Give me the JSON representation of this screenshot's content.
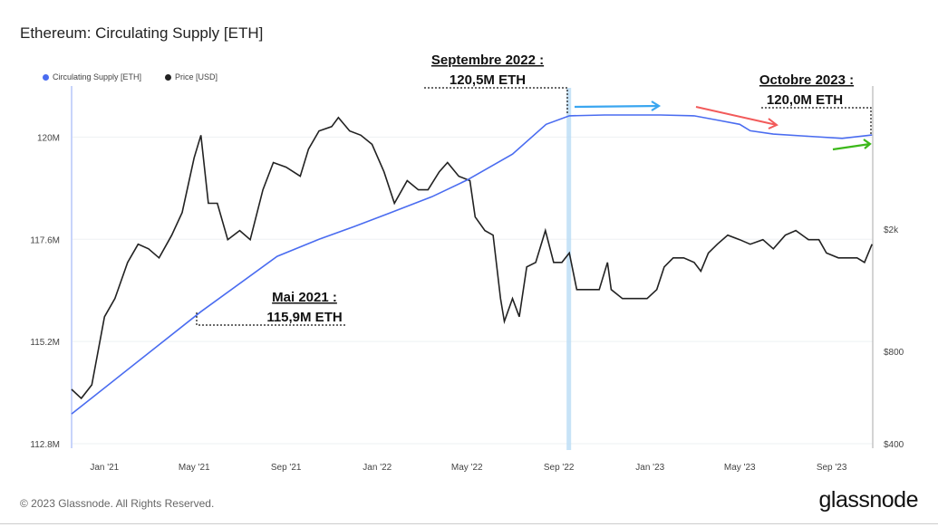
{
  "chart_data": {
    "type": "line",
    "title": "Ethereum: Circulating Supply [ETH]",
    "legend_placement": "top-left",
    "grid": true,
    "xlim": [
      "2020-11-18",
      "2023-10-26"
    ],
    "x_ticks": [
      {
        "date": "2021-01-01",
        "label": "Jan '21"
      },
      {
        "date": "2021-05-01",
        "label": "May '21"
      },
      {
        "date": "2021-09-01",
        "label": "Sep '21"
      },
      {
        "date": "2022-01-01",
        "label": "Jan '22"
      },
      {
        "date": "2022-05-01",
        "label": "May '22"
      },
      {
        "date": "2022-09-01",
        "label": "Sep '22"
      },
      {
        "date": "2023-01-01",
        "label": "Jan '23"
      },
      {
        "date": "2023-05-01",
        "label": "May '23"
      },
      {
        "date": "2023-09-01",
        "label": "Sep '23"
      }
    ],
    "y_left": {
      "scale": "linear",
      "ylim": [
        112.8,
        121.2
      ],
      "unit": "M ETH",
      "ticks": [
        {
          "v": 112.8,
          "label": "112.8M"
        },
        {
          "v": 115.2,
          "label": "115.2M"
        },
        {
          "v": 117.6,
          "label": "117.6M"
        },
        {
          "v": 120,
          "label": "120M"
        }
      ]
    },
    "y_right": {
      "scale": "log",
      "ylim": [
        400,
        5840
      ],
      "unit": "USD",
      "ticks": [
        {
          "v": 400,
          "label": "$400"
        },
        {
          "v": 800,
          "label": "$800"
        },
        {
          "v": 2000,
          "label": "$2k"
        }
      ]
    },
    "series": [
      {
        "name": "Circulating Supply [ETH]",
        "axis": "left",
        "color": "#4a6cf0",
        "points": [
          [
            "2020-11-18",
            113.5
          ],
          [
            "2021-05-10",
            115.9
          ],
          [
            "2021-08-20",
            117.2
          ],
          [
            "2021-10-15",
            117.6
          ],
          [
            "2021-12-01",
            117.9
          ],
          [
            "2022-01-15",
            118.2
          ],
          [
            "2022-03-15",
            118.6
          ],
          [
            "2022-05-01",
            118.99
          ],
          [
            "2022-07-01",
            119.6
          ],
          [
            "2022-08-15",
            120.3
          ],
          [
            "2022-09-15",
            120.5
          ],
          [
            "2022-11-01",
            120.52
          ],
          [
            "2023-01-15",
            120.52
          ],
          [
            "2023-03-01",
            120.5
          ],
          [
            "2023-04-01",
            120.4
          ],
          [
            "2023-05-01",
            120.3
          ],
          [
            "2023-05-15",
            120.15
          ],
          [
            "2023-06-15",
            120.07
          ],
          [
            "2023-08-01",
            120.02
          ],
          [
            "2023-09-15",
            119.97
          ],
          [
            "2023-10-25",
            120.05
          ]
        ]
      },
      {
        "name": "Price [USD]",
        "axis": "right",
        "color": "#222222",
        "points": [
          [
            "2020-11-18",
            601
          ],
          [
            "2020-12-01",
            562
          ],
          [
            "2020-12-15",
            622
          ],
          [
            "2021-01-01",
            1036
          ],
          [
            "2021-01-15",
            1187
          ],
          [
            "2021-02-01",
            1557
          ],
          [
            "2021-02-15",
            1784
          ],
          [
            "2021-03-01",
            1723
          ],
          [
            "2021-03-15",
            1610
          ],
          [
            "2021-04-01",
            1910
          ],
          [
            "2021-04-15",
            2263
          ],
          [
            "2021-05-01",
            3410
          ],
          [
            "2021-05-10",
            4040
          ],
          [
            "2021-05-20",
            2425
          ],
          [
            "2021-06-01",
            2425
          ],
          [
            "2021-06-15",
            1846
          ],
          [
            "2021-07-01",
            1977
          ],
          [
            "2021-07-15",
            1846
          ],
          [
            "2021-08-01",
            2682
          ],
          [
            "2021-08-15",
            3290
          ],
          [
            "2021-09-01",
            3180
          ],
          [
            "2021-09-20",
            2970
          ],
          [
            "2021-10-01",
            3640
          ],
          [
            "2021-10-15",
            4170
          ],
          [
            "2021-11-01",
            4310
          ],
          [
            "2021-11-10",
            4610
          ],
          [
            "2021-11-25",
            4170
          ],
          [
            "2021-12-10",
            4040
          ],
          [
            "2021-12-25",
            3772
          ],
          [
            "2022-01-10",
            3070
          ],
          [
            "2022-01-24",
            2425
          ],
          [
            "2022-02-10",
            2873
          ],
          [
            "2022-02-25",
            2682
          ],
          [
            "2022-03-10",
            2682
          ],
          [
            "2022-03-25",
            3070
          ],
          [
            "2022-04-05",
            3290
          ],
          [
            "2022-04-20",
            2970
          ],
          [
            "2022-05-05",
            2873
          ],
          [
            "2022-05-12",
            2189
          ],
          [
            "2022-05-25",
            1977
          ],
          [
            "2022-06-05",
            1910
          ],
          [
            "2022-06-15",
            1187
          ],
          [
            "2022-06-20",
            1000
          ],
          [
            "2022-07-01",
            1187
          ],
          [
            "2022-07-10",
            1036
          ],
          [
            "2022-07-20",
            1505
          ],
          [
            "2022-08-01",
            1557
          ],
          [
            "2022-08-14",
            1977
          ],
          [
            "2022-08-25",
            1557
          ],
          [
            "2022-09-05",
            1557
          ],
          [
            "2022-09-15",
            1670
          ],
          [
            "2022-09-25",
            1270
          ],
          [
            "2022-10-10",
            1270
          ],
          [
            "2022-10-25",
            1270
          ],
          [
            "2022-11-05",
            1557
          ],
          [
            "2022-11-10",
            1270
          ],
          [
            "2022-11-25",
            1187
          ],
          [
            "2022-12-10",
            1187
          ],
          [
            "2022-12-28",
            1187
          ],
          [
            "2023-01-10",
            1270
          ],
          [
            "2023-01-20",
            1505
          ],
          [
            "2023-02-01",
            1610
          ],
          [
            "2023-02-15",
            1610
          ],
          [
            "2023-03-01",
            1557
          ],
          [
            "2023-03-10",
            1457
          ],
          [
            "2023-03-20",
            1670
          ],
          [
            "2023-04-01",
            1784
          ],
          [
            "2023-04-15",
            1910
          ],
          [
            "2023-05-01",
            1846
          ],
          [
            "2023-05-15",
            1784
          ],
          [
            "2023-06-01",
            1846
          ],
          [
            "2023-06-15",
            1723
          ],
          [
            "2023-07-01",
            1910
          ],
          [
            "2023-07-15",
            1977
          ],
          [
            "2023-08-01",
            1846
          ],
          [
            "2023-08-15",
            1846
          ],
          [
            "2023-08-25",
            1670
          ],
          [
            "2023-09-10",
            1610
          ],
          [
            "2023-09-25",
            1610
          ],
          [
            "2023-10-05",
            1610
          ],
          [
            "2023-10-15",
            1557
          ],
          [
            "2023-10-25",
            1784
          ]
        ]
      }
    ],
    "highlight_date": "2022-09-15",
    "annotations": [
      {
        "line1": "Septembre 2022 :",
        "line2": "120,5M ETH"
      },
      {
        "line1": "Octobre 2023 :",
        "line2": "120,0M ETH"
      },
      {
        "line1": "Mai 2021 :",
        "line2": "115,9M ETH"
      }
    ],
    "arrow_colors": {
      "flat": "#3aa6f0",
      "down": "#f25a5a",
      "up": "#3cb81a"
    }
  },
  "footer": {
    "copyright": "© 2023 Glassnode. All Rights Reserved.",
    "logo": "glassnode"
  }
}
